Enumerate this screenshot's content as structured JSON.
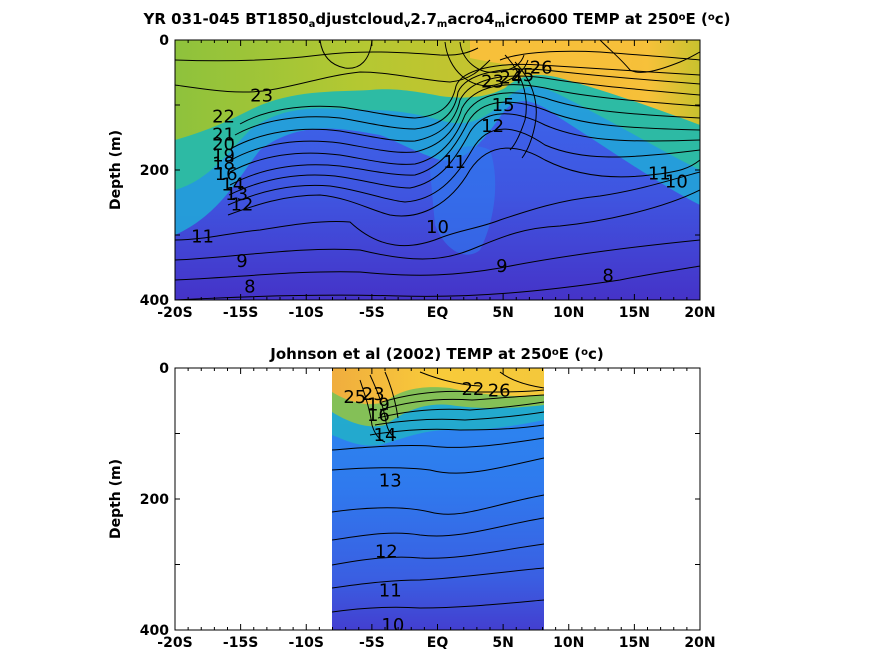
{
  "chart_data": [
    {
      "type": "contour",
      "title_parts": [
        {
          "text": "YR 031-045 BT1850",
          "style": "normal"
        },
        {
          "text": "a",
          "style": "sub"
        },
        {
          "text": "djustcloud",
          "style": "normal"
        },
        {
          "text": "v",
          "style": "sub"
        },
        {
          "text": "2.7",
          "style": "normal"
        },
        {
          "text": "m",
          "style": "sub"
        },
        {
          "text": "acro4",
          "style": "normal"
        },
        {
          "text": "m",
          "style": "sub"
        },
        {
          "text": "icro600 TEMP at 250",
          "style": "normal"
        },
        {
          "text": "o",
          "style": "sup"
        },
        {
          "text": "E (",
          "style": "normal"
        },
        {
          "text": "o",
          "style": "sup"
        },
        {
          "text": "c)",
          "style": "normal"
        }
      ],
      "ylabel": "Depth (m)",
      "xlim": [
        -20,
        20
      ],
      "ylim": [
        0,
        400
      ],
      "y_reversed": true,
      "xticks": [
        -20,
        -15,
        -10,
        -5,
        0,
        5,
        10,
        15,
        20
      ],
      "xtick_labels": [
        "-20S",
        "-15S",
        "-10S",
        "-5S",
        "EQ",
        "5N",
        "10N",
        "15N",
        "20N"
      ],
      "yticks": [
        0,
        200,
        400
      ],
      "ytick_labels": [
        "0",
        "200",
        "400"
      ],
      "data_extent_x": [
        -20,
        20
      ],
      "contour_labels": [
        {
          "text": "23",
          "x": -13.4,
          "y": 85
        },
        {
          "text": "22",
          "x": -16.3,
          "y": 118
        },
        {
          "text": "21",
          "x": -16.3,
          "y": 145
        },
        {
          "text": "20",
          "x": -16.3,
          "y": 160
        },
        {
          "text": "19",
          "x": -16.3,
          "y": 178
        },
        {
          "text": "18",
          "x": -16.3,
          "y": 190
        },
        {
          "text": "16",
          "x": -16.1,
          "y": 206
        },
        {
          "text": "14",
          "x": -15.6,
          "y": 222
        },
        {
          "text": "13",
          "x": -15.3,
          "y": 237
        },
        {
          "text": "12",
          "x": -14.9,
          "y": 253
        },
        {
          "text": "11",
          "x": -17.9,
          "y": 302
        },
        {
          "text": "9",
          "x": -14.9,
          "y": 340
        },
        {
          "text": "8",
          "x": -14.3,
          "y": 379
        },
        {
          "text": "10",
          "x": 0.0,
          "y": 288
        },
        {
          "text": "9",
          "x": 4.9,
          "y": 348
        },
        {
          "text": "11",
          "x": 1.3,
          "y": 188
        },
        {
          "text": "12",
          "x": 4.2,
          "y": 132
        },
        {
          "text": "15",
          "x": 5.0,
          "y": 100
        },
        {
          "text": "23",
          "x": 4.2,
          "y": 64
        },
        {
          "text": "24",
          "x": 5.6,
          "y": 58
        },
        {
          "text": "25",
          "x": 6.5,
          "y": 54
        },
        {
          "text": "26",
          "x": 7.9,
          "y": 42
        },
        {
          "text": "8",
          "x": 13.0,
          "y": 362
        },
        {
          "text": "11",
          "x": 16.9,
          "y": 205
        },
        {
          "text": "10",
          "x": 18.2,
          "y": 218
        }
      ]
    },
    {
      "type": "contour",
      "title_parts": [
        {
          "text": "Johnson et al (2002) TEMP at 250",
          "style": "normal"
        },
        {
          "text": "o",
          "style": "sup"
        },
        {
          "text": "E (",
          "style": "normal"
        },
        {
          "text": "o",
          "style": "sup"
        },
        {
          "text": "c)",
          "style": "normal"
        }
      ],
      "ylabel": "Depth (m)",
      "xlim": [
        -20,
        20
      ],
      "ylim": [
        0,
        400
      ],
      "y_reversed": true,
      "xticks": [
        -20,
        -15,
        -10,
        -5,
        0,
        5,
        10,
        15,
        20
      ],
      "xtick_labels": [
        "-20S",
        "-15S",
        "-10S",
        "-5S",
        "EQ",
        "5N",
        "10N",
        "15N",
        "20N"
      ],
      "yticks": [
        0,
        200,
        400
      ],
      "ytick_labels": [
        "0",
        "200",
        "400"
      ],
      "data_extent_x": [
        -8,
        8.3
      ],
      "contour_labels": [
        {
          "text": "25",
          "x": -6.3,
          "y": 44
        },
        {
          "text": "23",
          "x": -4.9,
          "y": 40
        },
        {
          "text": "19",
          "x": -4.5,
          "y": 56
        },
        {
          "text": "16",
          "x": -4.5,
          "y": 72
        },
        {
          "text": "14",
          "x": -4.0,
          "y": 102
        },
        {
          "text": "13",
          "x": -3.6,
          "y": 172
        },
        {
          "text": "12",
          "x": -3.9,
          "y": 280
        },
        {
          "text": "11",
          "x": -3.6,
          "y": 340
        },
        {
          "text": "10",
          "x": -3.4,
          "y": 392
        },
        {
          "text": "22",
          "x": 2.7,
          "y": 32
        },
        {
          "text": "26",
          "x": 4.7,
          "y": 34
        }
      ]
    }
  ]
}
